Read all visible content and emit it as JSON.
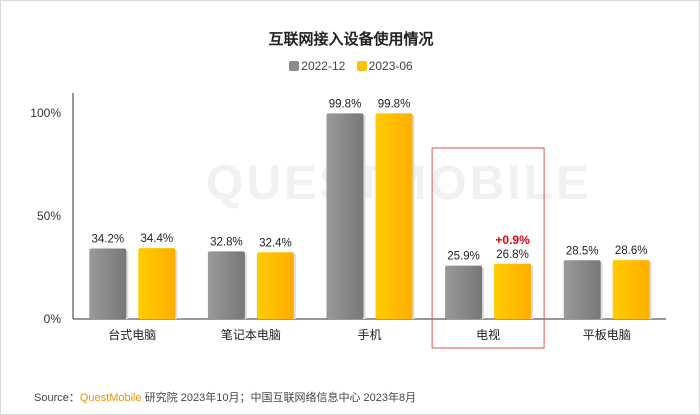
{
  "chart_data": {
    "type": "bar",
    "title": "互联网接入设备使用情况",
    "categories": [
      "台式电脑",
      "笔记本电脑",
      "手机",
      "电视",
      "平板电脑"
    ],
    "series": [
      {
        "name": "2022-12",
        "color": "#8c8c8c",
        "values": [
          34.2,
          32.8,
          99.8,
          25.9,
          28.5
        ],
        "labels": [
          "34.2%",
          "32.8%",
          "99.8%",
          "25.9%",
          "28.5%"
        ]
      },
      {
        "name": "2023-06",
        "color": "#ffc000",
        "values": [
          34.4,
          32.4,
          99.8,
          26.8,
          28.6
        ],
        "labels": [
          "34.4%",
          "32.4%",
          "99.8%",
          "26.8%",
          "28.6%"
        ]
      }
    ],
    "yticks": [
      "0%",
      "50%",
      "100%"
    ],
    "ylim": [
      0,
      100
    ],
    "annotation": {
      "category": "电视",
      "text": "+0.9%",
      "color": "#e0000f"
    },
    "highlight_category": "电视"
  },
  "watermark": "QUESTMOBILE",
  "source": {
    "prefix": "Source：",
    "brand": "QuestMobile",
    "rest": "研究院 2023年10月；中国互联网络信息中心 2023年8月"
  }
}
